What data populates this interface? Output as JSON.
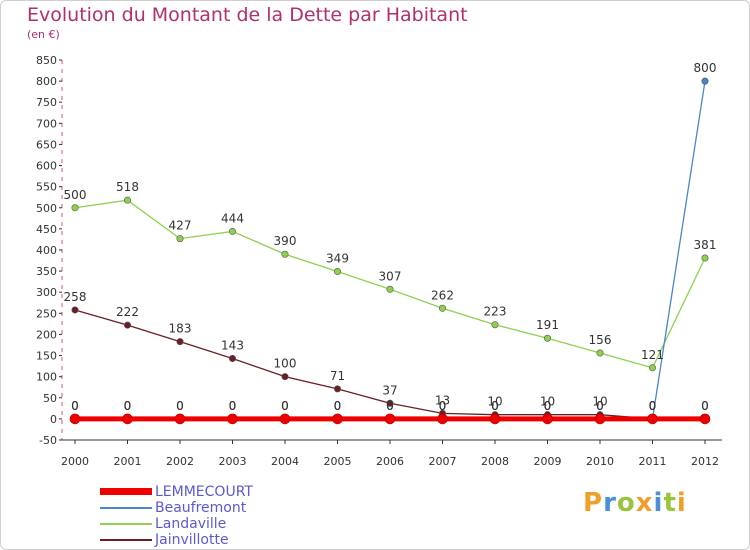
{
  "chart_data": {
    "type": "line",
    "title": "Evolution du Montant de la Dette par Habitant",
    "subtitle": "(en €)",
    "categories": [
      "2000",
      "2001",
      "2002",
      "2003",
      "2004",
      "2005",
      "2006",
      "2007",
      "2008",
      "2009",
      "2010",
      "2011",
      "2012"
    ],
    "ylim": [
      -50,
      850
    ],
    "yticks": [
      -50,
      0,
      50,
      100,
      150,
      200,
      250,
      300,
      350,
      400,
      450,
      500,
      550,
      600,
      650,
      700,
      750,
      800,
      850
    ],
    "grid": false,
    "legend_position": "bottom-left",
    "series": [
      {
        "name": "LEMMECOURT",
        "color": "#ee0000",
        "values": [
          0,
          0,
          0,
          0,
          0,
          0,
          0,
          0,
          0,
          0,
          0,
          0,
          0
        ],
        "labels": [
          "0",
          "0",
          "0",
          "0",
          "0",
          "0",
          "0",
          "0",
          "0",
          "0",
          "0",
          "0",
          "0"
        ],
        "style": "thick"
      },
      {
        "name": "Beaufremont",
        "color": "#4a86c8",
        "values": [
          0,
          0,
          0,
          0,
          0,
          0,
          0,
          0,
          0,
          0,
          0,
          0,
          800
        ],
        "labels": [
          "0",
          "0",
          "0",
          "0",
          "0",
          "0",
          "0",
          "0",
          "0",
          "0",
          "0",
          "0",
          "800"
        ],
        "style": "normal"
      },
      {
        "name": "Landaville",
        "color": "#8fd14f",
        "values": [
          500,
          518,
          427,
          444,
          390,
          349,
          307,
          262,
          223,
          191,
          156,
          121,
          381
        ],
        "labels": [
          "500",
          "518",
          "427",
          "444",
          "390",
          "349",
          "307",
          "262",
          "223",
          "191",
          "156",
          "121",
          "381"
        ],
        "style": "normal"
      },
      {
        "name": "Jainvillotte",
        "color": "#6b1f24",
        "values": [
          258,
          222,
          183,
          143,
          100,
          71,
          37,
          13,
          10,
          10,
          10,
          0,
          0
        ],
        "labels": [
          "258",
          "222",
          "183",
          "143",
          "100",
          "71",
          "37",
          "13",
          "10",
          "10",
          "10",
          "0",
          "0"
        ],
        "style": "normal"
      }
    ]
  },
  "brand": {
    "text": "Proxiti",
    "letters": [
      {
        "ch": "P",
        "color": "#f0a02a"
      },
      {
        "ch": "r",
        "color": "#4a90d9"
      },
      {
        "ch": "o",
        "color": "#9ac43c"
      },
      {
        "ch": "x",
        "color": "#f0a02a"
      },
      {
        "ch": "i",
        "color": "#4a90d9"
      },
      {
        "ch": "t",
        "color": "#9ac43c"
      },
      {
        "ch": "i",
        "color": "#f0a02a"
      }
    ]
  }
}
